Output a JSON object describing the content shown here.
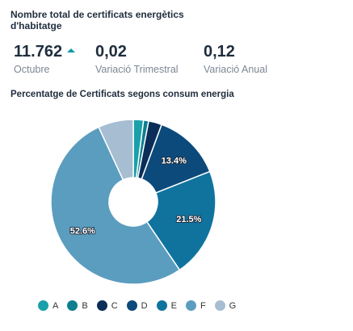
{
  "header": {
    "title": "Nombre total de certificats energètics d'habitatge"
  },
  "kpis": [
    {
      "value": "11.762",
      "label": "Octubre",
      "trend": "up"
    },
    {
      "value": "0,02",
      "label": "Variació Trimestral"
    },
    {
      "value": "0,12",
      "label": "Variació Anual"
    }
  ],
  "colors": {
    "trend_up": "#0e9aa7"
  },
  "chart_data": {
    "type": "pie",
    "title": "Percentatge de Certificats segons consum energia",
    "donut": true,
    "categories": [
      "A",
      "B",
      "C",
      "D",
      "E",
      "F",
      "G"
    ],
    "values": [
      2.0,
      1.0,
      2.6,
      13.4,
      21.5,
      52.6,
      6.9
    ],
    "data_labels": [
      "",
      "",
      "",
      "13.4%",
      "21.5%",
      "52.6%",
      ""
    ],
    "colors": [
      "#1aa0a8",
      "#0d7f8f",
      "#0b2e59",
      "#0c4a7c",
      "#10739e",
      "#5b9dbf",
      "#a6bdd2"
    ],
    "legend_placement": "bottom-left"
  }
}
